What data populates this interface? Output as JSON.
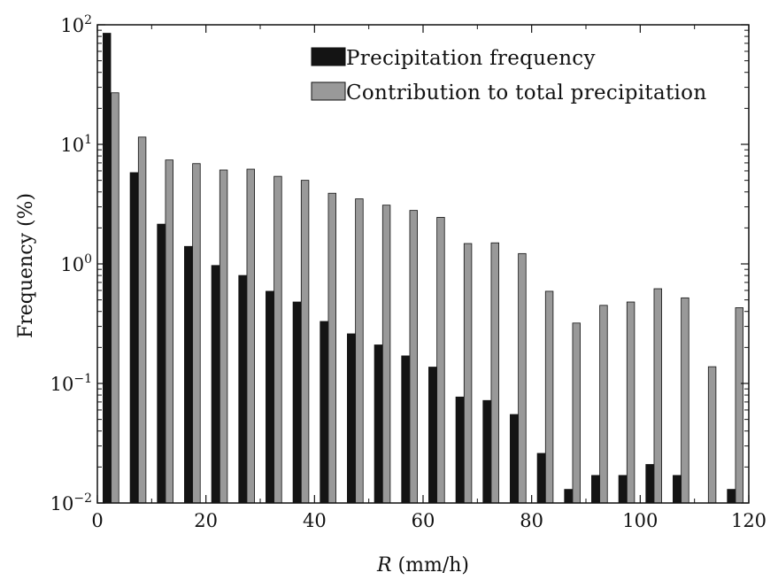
{
  "chart_data": {
    "type": "bar",
    "scale_y": "log",
    "categories": [
      2.5,
      7.5,
      12.5,
      17.5,
      22.5,
      27.5,
      32.5,
      37.5,
      42.5,
      47.5,
      52.5,
      57.5,
      62.5,
      67.5,
      72.5,
      77.5,
      82.5,
      87.5,
      92.5,
      97.5,
      102.5,
      107.5,
      112.5,
      117.5
    ],
    "series": [
      {
        "name": "Precipitation frequency",
        "color": "#141414",
        "values": [
          85,
          5.8,
          2.15,
          1.4,
          0.97,
          0.8,
          0.59,
          0.48,
          0.33,
          0.26,
          0.21,
          0.17,
          0.137,
          0.077,
          0.072,
          0.055,
          0.026,
          0.013,
          0.017,
          0.017,
          0.021,
          0.017,
          null,
          0.013
        ]
      },
      {
        "name": "Contribution to total precipitation",
        "color": "#999999",
        "values": [
          27,
          11.5,
          7.4,
          6.9,
          6.1,
          6.2,
          5.4,
          5.0,
          3.9,
          3.5,
          3.1,
          2.8,
          2.45,
          1.48,
          1.5,
          1.22,
          0.59,
          0.32,
          0.45,
          0.48,
          0.62,
          0.52,
          0.138,
          0.43
        ]
      }
    ],
    "title": "",
    "xlabel_var": "R",
    "xlabel_unit": "(mm/h)",
    "ylabel": "Frequency (%)",
    "xlim": [
      0,
      120
    ],
    "ylim": [
      0.01,
      100
    ],
    "x_ticks": [
      "0",
      "20",
      "40",
      "60",
      "80",
      "100",
      "120"
    ],
    "y_ticks": [
      {
        "base": "10",
        "exp": "2"
      },
      {
        "base": "10",
        "exp": "1"
      },
      {
        "base": "10",
        "exp": "0"
      },
      {
        "base": "10",
        "exp": "−1"
      },
      {
        "base": "10",
        "exp": "−2"
      }
    ],
    "legend_position": "top-right",
    "grid": false
  }
}
